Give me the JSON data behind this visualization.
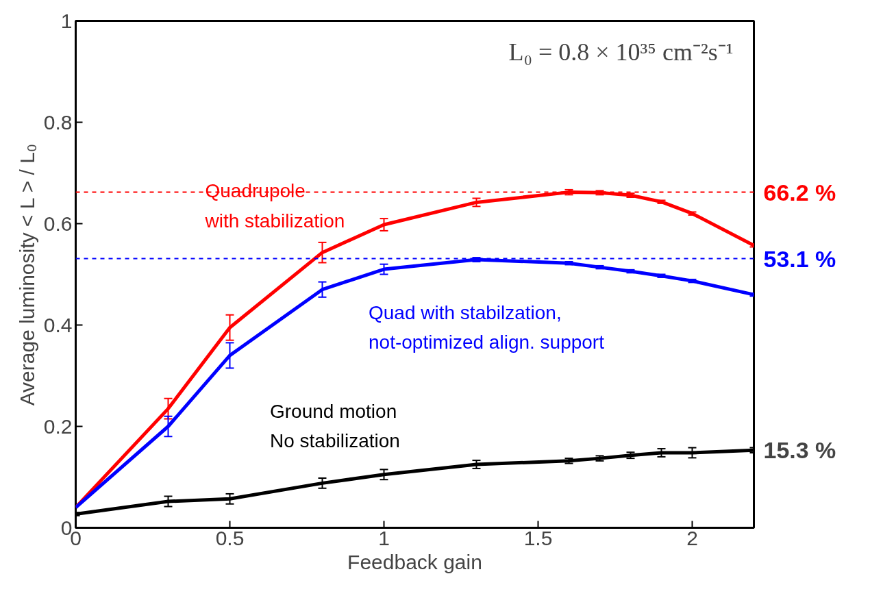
{
  "chart_data": {
    "type": "line",
    "xlabel": "Feedback gain",
    "ylabel": "Average luminosity < L > / L₀",
    "x": [
      0,
      0.3,
      0.5,
      0.8,
      1.0,
      1.3,
      1.6,
      1.7,
      1.8,
      1.9,
      2.0,
      2.2
    ],
    "series": [
      {
        "name": "Quadrupole\nwith stabilization",
        "color": "#ff0000",
        "values": [
          0.04,
          0.235,
          0.395,
          0.543,
          0.598,
          0.642,
          0.662,
          0.661,
          0.656,
          0.643,
          0.62,
          0.557
        ],
        "errors": [
          null,
          0.02,
          0.025,
          0.02,
          0.012,
          0.008,
          0.005,
          0.004,
          0.004,
          0.003,
          0.003,
          0.003
        ]
      },
      {
        "name": "Quad with stabilzation,\nnot-optimized align. support",
        "color": "#0000ff",
        "values": [
          0.04,
          0.2,
          0.34,
          0.47,
          0.51,
          0.529,
          0.522,
          0.514,
          0.506,
          0.497,
          0.487,
          0.46
        ],
        "errors": [
          null,
          0.02,
          0.025,
          0.015,
          0.01,
          0.004,
          0.003,
          0.003,
          0.003,
          0.003,
          0.003,
          0.003
        ]
      },
      {
        "name": "Ground motion\nNo stabilization",
        "color": "#000000",
        "values": [
          0.027,
          0.052,
          0.057,
          0.088,
          0.105,
          0.125,
          0.132,
          0.137,
          0.143,
          0.148,
          0.148,
          0.153
        ],
        "errors": [
          0.003,
          0.01,
          0.01,
          0.01,
          0.01,
          0.008,
          0.005,
          0.005,
          0.006,
          0.008,
          0.01,
          0.005
        ]
      }
    ],
    "xlim": [
      0,
      2.2
    ],
    "ylim": [
      0,
      1
    ],
    "xticks": [
      0,
      0.5,
      1,
      1.5,
      2
    ],
    "yticks": [
      0,
      0.2,
      0.4,
      0.6,
      0.8,
      1
    ],
    "ref_lines": [
      {
        "axis": "y",
        "value": 0.662,
        "label": "66.2 %",
        "color": "#ff0000",
        "line_style": "dashed"
      },
      {
        "axis": "y",
        "value": 0.531,
        "label": "53.1 %",
        "color": "#0000ff",
        "line_style": "dashed"
      }
    ],
    "annotations": [
      {
        "text": "15.3 %",
        "x": 2.2,
        "y": 0.153
      },
      "L₀ = 0.8 × 10³⁵ cm⁻²s⁻¹"
    ],
    "grid": false,
    "marker": "none",
    "line_style": "solid"
  }
}
